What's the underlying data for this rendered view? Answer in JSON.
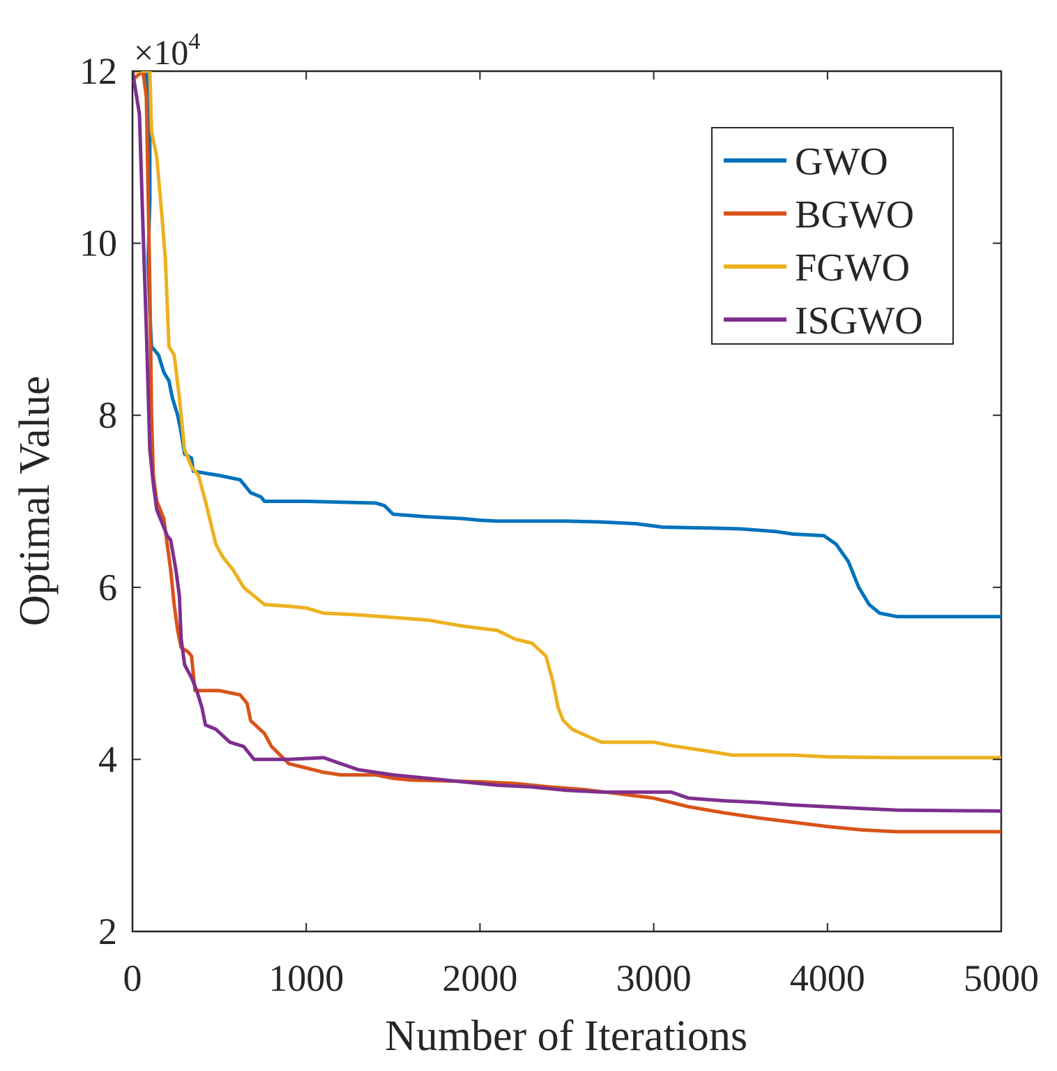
{
  "chart_data": {
    "type": "line",
    "title": "",
    "xlabel": "Number of Iterations",
    "ylabel": "Optimal Value",
    "y_exponent_label": "×10",
    "y_exponent_power": "4",
    "xlim": [
      0,
      5000
    ],
    "ylim": [
      2,
      12
    ],
    "xticks": [
      0,
      1000,
      2000,
      3000,
      4000,
      5000
    ],
    "xtick_labels": [
      "0",
      "1000",
      "2000",
      "3000",
      "4000",
      "5000"
    ],
    "yticks": [
      2,
      4,
      6,
      8,
      10,
      12
    ],
    "ytick_labels": [
      "2",
      "4",
      "6",
      "8",
      "10",
      "12"
    ],
    "grid": false,
    "legend_position": "top-right",
    "series": [
      {
        "name": "GWO",
        "color": "#0072BD",
        "points": [
          [
            0,
            12
          ],
          [
            80,
            12
          ],
          [
            100,
            11.2
          ],
          [
            100,
            10.5
          ],
          [
            90,
            9.8
          ],
          [
            100,
            9.2
          ],
          [
            110,
            8.8
          ],
          [
            150,
            8.7
          ],
          [
            180,
            8.5
          ],
          [
            210,
            8.4
          ],
          [
            230,
            8.2
          ],
          [
            260,
            8.0
          ],
          [
            280,
            7.8
          ],
          [
            300,
            7.55
          ],
          [
            340,
            7.5
          ],
          [
            350,
            7.35
          ],
          [
            500,
            7.3
          ],
          [
            620,
            7.25
          ],
          [
            680,
            7.1
          ],
          [
            740,
            7.05
          ],
          [
            760,
            7.0
          ],
          [
            1000,
            7.0
          ],
          [
            1400,
            6.98
          ],
          [
            1450,
            6.95
          ],
          [
            1500,
            6.85
          ],
          [
            1700,
            6.82
          ],
          [
            1900,
            6.8
          ],
          [
            2000,
            6.78
          ],
          [
            2100,
            6.77
          ],
          [
            2500,
            6.77
          ],
          [
            2700,
            6.76
          ],
          [
            2900,
            6.74
          ],
          [
            3050,
            6.7
          ],
          [
            3300,
            6.69
          ],
          [
            3500,
            6.68
          ],
          [
            3700,
            6.65
          ],
          [
            3800,
            6.62
          ],
          [
            3980,
            6.6
          ],
          [
            4050,
            6.5
          ],
          [
            4120,
            6.3
          ],
          [
            4180,
            6.0
          ],
          [
            4240,
            5.8
          ],
          [
            4300,
            5.7
          ],
          [
            4400,
            5.66
          ],
          [
            5000,
            5.66
          ]
        ]
      },
      {
        "name": "BGWO",
        "color": "#D95319",
        "points": [
          [
            0,
            11.9
          ],
          [
            60,
            12
          ],
          [
            80,
            11.7
          ],
          [
            100,
            9.5
          ],
          [
            110,
            8.0
          ],
          [
            120,
            7.3
          ],
          [
            140,
            7.0
          ],
          [
            180,
            6.8
          ],
          [
            200,
            6.5
          ],
          [
            220,
            6.2
          ],
          [
            240,
            5.8
          ],
          [
            260,
            5.5
          ],
          [
            280,
            5.3
          ],
          [
            320,
            5.25
          ],
          [
            340,
            5.2
          ],
          [
            360,
            4.8
          ],
          [
            500,
            4.8
          ],
          [
            620,
            4.75
          ],
          [
            660,
            4.65
          ],
          [
            680,
            4.45
          ],
          [
            760,
            4.3
          ],
          [
            800,
            4.15
          ],
          [
            850,
            4.05
          ],
          [
            900,
            3.95
          ],
          [
            1000,
            3.9
          ],
          [
            1100,
            3.85
          ],
          [
            1200,
            3.82
          ],
          [
            1400,
            3.82
          ],
          [
            1500,
            3.78
          ],
          [
            1600,
            3.76
          ],
          [
            1800,
            3.75
          ],
          [
            2000,
            3.74
          ],
          [
            2200,
            3.72
          ],
          [
            2400,
            3.68
          ],
          [
            2600,
            3.65
          ],
          [
            2800,
            3.6
          ],
          [
            3000,
            3.55
          ],
          [
            3200,
            3.45
          ],
          [
            3400,
            3.38
          ],
          [
            3600,
            3.32
          ],
          [
            3800,
            3.27
          ],
          [
            4000,
            3.22
          ],
          [
            4200,
            3.18
          ],
          [
            4400,
            3.16
          ],
          [
            5000,
            3.16
          ]
        ]
      },
      {
        "name": "FGWO",
        "color": "#EDB120",
        "points": [
          [
            0,
            12
          ],
          [
            100,
            12
          ],
          [
            110,
            11.3
          ],
          [
            140,
            11.0
          ],
          [
            170,
            10.3
          ],
          [
            190,
            9.8
          ],
          [
            210,
            8.8
          ],
          [
            240,
            8.7
          ],
          [
            270,
            8.2
          ],
          [
            300,
            7.6
          ],
          [
            340,
            7.4
          ],
          [
            380,
            7.3
          ],
          [
            420,
            7.0
          ],
          [
            480,
            6.5
          ],
          [
            520,
            6.35
          ],
          [
            580,
            6.2
          ],
          [
            640,
            6.0
          ],
          [
            700,
            5.9
          ],
          [
            760,
            5.8
          ],
          [
            900,
            5.78
          ],
          [
            1000,
            5.76
          ],
          [
            1100,
            5.7
          ],
          [
            1300,
            5.68
          ],
          [
            1500,
            5.65
          ],
          [
            1700,
            5.62
          ],
          [
            1900,
            5.55
          ],
          [
            2100,
            5.5
          ],
          [
            2200,
            5.4
          ],
          [
            2300,
            5.35
          ],
          [
            2380,
            5.2
          ],
          [
            2420,
            4.9
          ],
          [
            2450,
            4.6
          ],
          [
            2480,
            4.45
          ],
          [
            2530,
            4.35
          ],
          [
            2640,
            4.25
          ],
          [
            2700,
            4.2
          ],
          [
            3000,
            4.2
          ],
          [
            3100,
            4.16
          ],
          [
            3300,
            4.1
          ],
          [
            3450,
            4.05
          ],
          [
            3800,
            4.05
          ],
          [
            4000,
            4.03
          ],
          [
            4400,
            4.02
          ],
          [
            5000,
            4.02
          ]
        ]
      },
      {
        "name": "ISGWO",
        "color": "#7E2F8E",
        "points": [
          [
            0,
            12
          ],
          [
            40,
            11.5
          ],
          [
            60,
            10.2
          ],
          [
            80,
            9.0
          ],
          [
            100,
            7.6
          ],
          [
            120,
            7.2
          ],
          [
            140,
            6.9
          ],
          [
            180,
            6.7
          ],
          [
            200,
            6.6
          ],
          [
            220,
            6.55
          ],
          [
            250,
            6.2
          ],
          [
            270,
            5.9
          ],
          [
            280,
            5.4
          ],
          [
            300,
            5.1
          ],
          [
            340,
            4.95
          ],
          [
            370,
            4.8
          ],
          [
            400,
            4.6
          ],
          [
            420,
            4.4
          ],
          [
            480,
            4.35
          ],
          [
            560,
            4.2
          ],
          [
            640,
            4.15
          ],
          [
            700,
            4.0
          ],
          [
            900,
            4.0
          ],
          [
            1100,
            4.02
          ],
          [
            1200,
            3.95
          ],
          [
            1300,
            3.88
          ],
          [
            1500,
            3.82
          ],
          [
            1700,
            3.78
          ],
          [
            1900,
            3.74
          ],
          [
            2100,
            3.7
          ],
          [
            2300,
            3.68
          ],
          [
            2500,
            3.64
          ],
          [
            2700,
            3.62
          ],
          [
            2900,
            3.62
          ],
          [
            3100,
            3.62
          ],
          [
            3200,
            3.55
          ],
          [
            3400,
            3.52
          ],
          [
            3600,
            3.5
          ],
          [
            3800,
            3.47
          ],
          [
            4000,
            3.45
          ],
          [
            4200,
            3.43
          ],
          [
            4400,
            3.41
          ],
          [
            5000,
            3.4
          ]
        ]
      }
    ]
  }
}
